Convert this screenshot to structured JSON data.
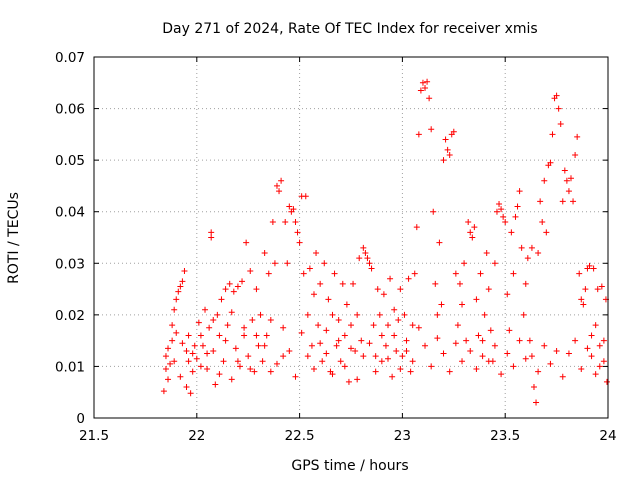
{
  "chart_data": {
    "type": "scatter",
    "title": "Day 271 of 2024, Rate Of TEC Index for receiver xmis",
    "xlabel": "GPS time / hours",
    "ylabel": "ROTI / TECUs",
    "xlim": [
      21.5,
      24
    ],
    "ylim": [
      0,
      0.07
    ],
    "xticks": [
      21.5,
      22,
      22.5,
      23,
      23.5,
      24
    ],
    "xtick_labels": [
      "21.5",
      "22",
      "22.5",
      "23",
      "23.5",
      "24"
    ],
    "yticks": [
      0,
      0.01,
      0.02,
      0.03,
      0.04,
      0.05,
      0.06,
      0.07
    ],
    "ytick_labels": [
      "0",
      "0.01",
      "0.02",
      "0.03",
      "0.04",
      "0.05",
      "0.06",
      "0.07"
    ],
    "grid": true,
    "marker": "+",
    "color": "#ff0000",
    "series": [
      {
        "name": "ROTI",
        "points": [
          [
            21.84,
            0.0052
          ],
          [
            21.85,
            0.0095
          ],
          [
            21.86,
            0.0135
          ],
          [
            21.87,
            0.0105
          ],
          [
            21.88,
            0.018
          ],
          [
            21.89,
            0.021
          ],
          [
            21.9,
            0.023
          ],
          [
            21.91,
            0.0245
          ],
          [
            21.92,
            0.0255
          ],
          [
            21.93,
            0.0265
          ],
          [
            21.94,
            0.0285
          ],
          [
            21.95,
            0.013
          ],
          [
            21.96,
            0.011
          ],
          [
            21.97,
            0.0048
          ],
          [
            21.98,
            0.009
          ],
          [
            21.99,
            0.014
          ],
          [
            21.85,
            0.012
          ],
          [
            21.86,
            0.0075
          ],
          [
            21.88,
            0.015
          ],
          [
            21.89,
            0.011
          ],
          [
            21.9,
            0.0165
          ],
          [
            21.92,
            0.008
          ],
          [
            21.93,
            0.0145
          ],
          [
            21.95,
            0.006
          ],
          [
            21.96,
            0.016
          ],
          [
            21.98,
            0.0125
          ],
          [
            22.0,
            0.0115
          ],
          [
            22.01,
            0.0185
          ],
          [
            22.02,
            0.01
          ],
          [
            22.03,
            0.014
          ],
          [
            22.04,
            0.021
          ],
          [
            22.05,
            0.0095
          ],
          [
            22.06,
            0.0175
          ],
          [
            22.07,
            0.036
          ],
          [
            22.07,
            0.035
          ],
          [
            22.08,
            0.013
          ],
          [
            22.09,
            0.0065
          ],
          [
            22.1,
            0.02
          ],
          [
            22.11,
            0.016
          ],
          [
            22.12,
            0.023
          ],
          [
            22.13,
            0.011
          ],
          [
            22.14,
            0.025
          ],
          [
            22.15,
            0.018
          ],
          [
            22.16,
            0.026
          ],
          [
            22.17,
            0.0075
          ],
          [
            22.18,
            0.0245
          ],
          [
            22.19,
            0.0135
          ],
          [
            22.2,
            0.0255
          ],
          [
            22.21,
            0.01
          ],
          [
            22.22,
            0.0265
          ],
          [
            22.23,
            0.016
          ],
          [
            22.24,
            0.034
          ],
          [
            22.25,
            0.012
          ],
          [
            22.26,
            0.0285
          ],
          [
            22.27,
            0.019
          ],
          [
            22.28,
            0.009
          ],
          [
            22.29,
            0.025
          ],
          [
            22.3,
            0.014
          ],
          [
            22.02,
            0.016
          ],
          [
            22.05,
            0.0125
          ],
          [
            22.08,
            0.019
          ],
          [
            22.11,
            0.0085
          ],
          [
            22.14,
            0.015
          ],
          [
            22.17,
            0.0205
          ],
          [
            22.2,
            0.011
          ],
          [
            22.23,
            0.0175
          ],
          [
            22.26,
            0.0095
          ],
          [
            22.29,
            0.016
          ],
          [
            22.31,
            0.02
          ],
          [
            22.32,
            0.011
          ],
          [
            22.33,
            0.032
          ],
          [
            22.34,
            0.016
          ],
          [
            22.35,
            0.028
          ],
          [
            22.36,
            0.009
          ],
          [
            22.37,
            0.038
          ],
          [
            22.38,
            0.03
          ],
          [
            22.39,
            0.045
          ],
          [
            22.4,
            0.044
          ],
          [
            22.41,
            0.046
          ],
          [
            22.42,
            0.012
          ],
          [
            22.43,
            0.038
          ],
          [
            22.44,
            0.03
          ],
          [
            22.45,
            0.041
          ],
          [
            22.46,
            0.04
          ],
          [
            22.47,
            0.0405
          ],
          [
            22.48,
            0.038
          ],
          [
            22.49,
            0.036
          ],
          [
            22.5,
            0.034
          ],
          [
            22.51,
            0.043
          ],
          [
            22.52,
            0.028
          ],
          [
            22.53,
            0.043
          ],
          [
            22.54,
            0.02
          ],
          [
            22.55,
            0.029
          ],
          [
            22.56,
            0.014
          ],
          [
            22.57,
            0.024
          ],
          [
            22.58,
            0.032
          ],
          [
            22.59,
            0.018
          ],
          [
            22.6,
            0.026
          ],
          [
            22.33,
            0.014
          ],
          [
            22.36,
            0.019
          ],
          [
            22.39,
            0.0105
          ],
          [
            22.42,
            0.0175
          ],
          [
            22.45,
            0.013
          ],
          [
            22.48,
            0.008
          ],
          [
            22.51,
            0.0165
          ],
          [
            22.54,
            0.012
          ],
          [
            22.57,
            0.0095
          ],
          [
            22.6,
            0.0145
          ],
          [
            22.61,
            0.011
          ],
          [
            22.62,
            0.03
          ],
          [
            22.63,
            0.017
          ],
          [
            22.64,
            0.023
          ],
          [
            22.65,
            0.009
          ],
          [
            22.66,
            0.02
          ],
          [
            22.67,
            0.028
          ],
          [
            22.68,
            0.014
          ],
          [
            22.69,
            0.019
          ],
          [
            22.7,
            0.011
          ],
          [
            22.71,
            0.026
          ],
          [
            22.72,
            0.016
          ],
          [
            22.73,
            0.022
          ],
          [
            22.74,
            0.007
          ],
          [
            22.75,
            0.018
          ],
          [
            22.76,
            0.026
          ],
          [
            22.77,
            0.013
          ],
          [
            22.78,
            0.02
          ],
          [
            22.79,
            0.031
          ],
          [
            22.8,
            0.015
          ],
          [
            22.81,
            0.033
          ],
          [
            22.82,
            0.032
          ],
          [
            22.83,
            0.031
          ],
          [
            22.84,
            0.03
          ],
          [
            22.85,
            0.029
          ],
          [
            22.86,
            0.018
          ],
          [
            22.87,
            0.012
          ],
          [
            22.88,
            0.025
          ],
          [
            22.89,
            0.02
          ],
          [
            22.9,
            0.011
          ],
          [
            22.63,
            0.0125
          ],
          [
            22.66,
            0.0085
          ],
          [
            22.69,
            0.015
          ],
          [
            22.72,
            0.01
          ],
          [
            22.75,
            0.0135
          ],
          [
            22.78,
            0.0075
          ],
          [
            22.81,
            0.012
          ],
          [
            22.84,
            0.0145
          ],
          [
            22.87,
            0.009
          ],
          [
            22.9,
            0.016
          ],
          [
            22.91,
            0.024
          ],
          [
            22.92,
            0.014
          ],
          [
            22.93,
            0.018
          ],
          [
            22.94,
            0.027
          ],
          [
            22.95,
            0.008
          ],
          [
            22.96,
            0.021
          ],
          [
            22.97,
            0.013
          ],
          [
            22.98,
            0.019
          ],
          [
            22.99,
            0.025
          ],
          [
            23.0,
            0.012
          ],
          [
            23.01,
            0.02
          ],
          [
            23.02,
            0.015
          ],
          [
            23.03,
            0.027
          ],
          [
            23.04,
            0.009
          ],
          [
            23.05,
            0.018
          ],
          [
            23.06,
            0.028
          ],
          [
            23.07,
            0.037
          ],
          [
            23.08,
            0.055
          ],
          [
            23.09,
            0.0635
          ],
          [
            23.1,
            0.065
          ],
          [
            23.11,
            0.064
          ],
          [
            23.12,
            0.0652
          ],
          [
            23.13,
            0.062
          ],
          [
            23.14,
            0.056
          ],
          [
            23.15,
            0.04
          ],
          [
            23.16,
            0.026
          ],
          [
            23.17,
            0.02
          ],
          [
            23.18,
            0.034
          ],
          [
            23.19,
            0.022
          ],
          [
            23.2,
            0.05
          ],
          [
            23.21,
            0.054
          ],
          [
            23.22,
            0.052
          ],
          [
            23.23,
            0.051
          ],
          [
            23.24,
            0.055
          ],
          [
            23.25,
            0.0555
          ],
          [
            23.26,
            0.028
          ],
          [
            23.27,
            0.018
          ],
          [
            23.28,
            0.026
          ],
          [
            23.29,
            0.022
          ],
          [
            23.3,
            0.03
          ],
          [
            22.93,
            0.0115
          ],
          [
            22.96,
            0.016
          ],
          [
            22.99,
            0.0095
          ],
          [
            23.02,
            0.013
          ],
          [
            23.05,
            0.011
          ],
          [
            23.08,
            0.0175
          ],
          [
            23.11,
            0.014
          ],
          [
            23.14,
            0.01
          ],
          [
            23.17,
            0.0155
          ],
          [
            23.2,
            0.0125
          ],
          [
            23.23,
            0.009
          ],
          [
            23.26,
            0.0145
          ],
          [
            23.29,
            0.011
          ],
          [
            23.31,
            0.015
          ],
          [
            23.32,
            0.038
          ],
          [
            23.33,
            0.036
          ],
          [
            23.34,
            0.035
          ],
          [
            23.35,
            0.037
          ],
          [
            23.36,
            0.023
          ],
          [
            23.37,
            0.016
          ],
          [
            23.38,
            0.028
          ],
          [
            23.39,
            0.012
          ],
          [
            23.4,
            0.02
          ],
          [
            23.41,
            0.032
          ],
          [
            23.42,
            0.025
          ],
          [
            23.43,
            0.017
          ],
          [
            23.44,
            0.011
          ],
          [
            23.45,
            0.03
          ],
          [
            23.46,
            0.04
          ],
          [
            23.47,
            0.0415
          ],
          [
            23.48,
            0.0405
          ],
          [
            23.49,
            0.039
          ],
          [
            23.5,
            0.038
          ],
          [
            23.51,
            0.024
          ],
          [
            23.52,
            0.017
          ],
          [
            23.53,
            0.036
          ],
          [
            23.54,
            0.028
          ],
          [
            23.55,
            0.039
          ],
          [
            23.56,
            0.041
          ],
          [
            23.57,
            0.044
          ],
          [
            23.58,
            0.033
          ],
          [
            23.59,
            0.02
          ],
          [
            23.6,
            0.026
          ],
          [
            23.33,
            0.013
          ],
          [
            23.36,
            0.0095
          ],
          [
            23.39,
            0.015
          ],
          [
            23.42,
            0.011
          ],
          [
            23.45,
            0.014
          ],
          [
            23.48,
            0.0085
          ],
          [
            23.51,
            0.0125
          ],
          [
            23.54,
            0.01
          ],
          [
            23.57,
            0.015
          ],
          [
            23.6,
            0.0115
          ],
          [
            23.61,
            0.031
          ],
          [
            23.62,
            0.015
          ],
          [
            23.63,
            0.033
          ],
          [
            23.64,
            0.006
          ],
          [
            23.65,
            0.003
          ],
          [
            23.66,
            0.032
          ],
          [
            23.67,
            0.042
          ],
          [
            23.68,
            0.038
          ],
          [
            23.69,
            0.046
          ],
          [
            23.7,
            0.036
          ],
          [
            23.71,
            0.049
          ],
          [
            23.72,
            0.0495
          ],
          [
            23.73,
            0.055
          ],
          [
            23.74,
            0.062
          ],
          [
            23.75,
            0.0625
          ],
          [
            23.76,
            0.06
          ],
          [
            23.77,
            0.057
          ],
          [
            23.78,
            0.042
          ],
          [
            23.79,
            0.048
          ],
          [
            23.8,
            0.046
          ],
          [
            23.81,
            0.044
          ],
          [
            23.82,
            0.0465
          ],
          [
            23.83,
            0.042
          ],
          [
            23.84,
            0.051
          ],
          [
            23.85,
            0.0545
          ],
          [
            23.86,
            0.028
          ],
          [
            23.87,
            0.023
          ],
          [
            23.88,
            0.022
          ],
          [
            23.89,
            0.025
          ],
          [
            23.9,
            0.029
          ],
          [
            23.63,
            0.012
          ],
          [
            23.66,
            0.009
          ],
          [
            23.69,
            0.014
          ],
          [
            23.72,
            0.0105
          ],
          [
            23.75,
            0.013
          ],
          [
            23.78,
            0.008
          ],
          [
            23.81,
            0.0125
          ],
          [
            23.84,
            0.015
          ],
          [
            23.87,
            0.0095
          ],
          [
            23.9,
            0.0135
          ],
          [
            23.91,
            0.0295
          ],
          [
            23.92,
            0.012
          ],
          [
            23.93,
            0.029
          ],
          [
            23.94,
            0.018
          ],
          [
            23.95,
            0.025
          ],
          [
            23.96,
            0.01
          ],
          [
            23.97,
            0.0255
          ],
          [
            23.98,
            0.015
          ],
          [
            23.99,
            0.023
          ],
          [
            23.995,
            0.007
          ],
          [
            23.92,
            0.016
          ],
          [
            23.94,
            0.0085
          ],
          [
            23.96,
            0.014
          ],
          [
            23.98,
            0.011
          ]
        ]
      }
    ]
  }
}
